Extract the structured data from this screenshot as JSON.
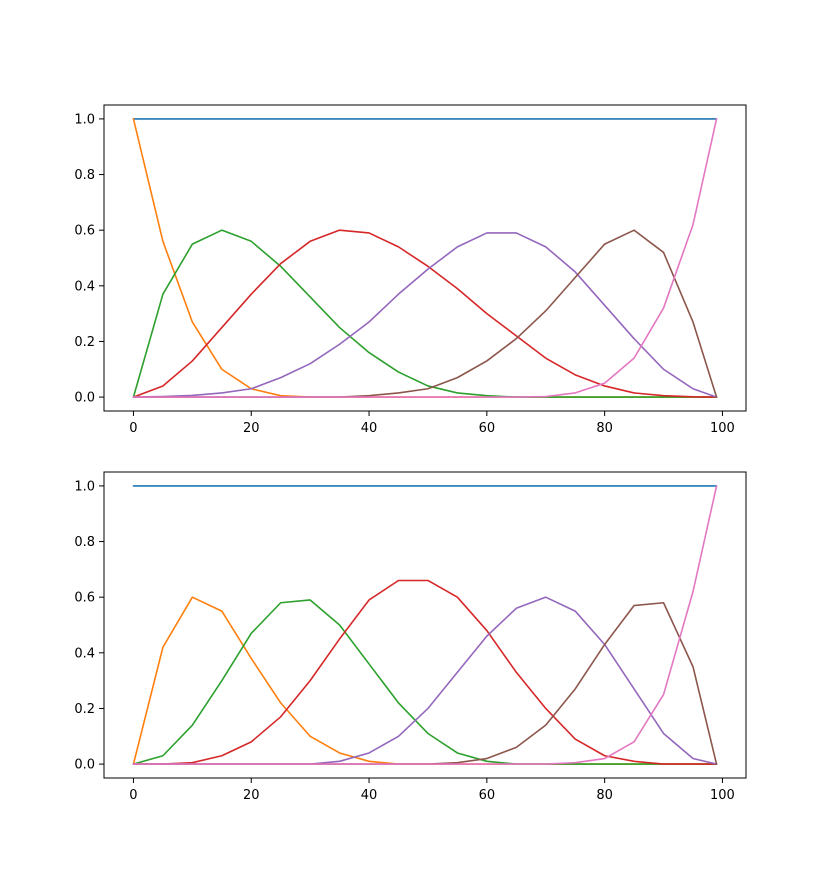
{
  "chart_data": [
    {
      "type": "line",
      "xlim": [
        -5,
        104
      ],
      "ylim": [
        -0.05,
        1.05
      ],
      "x_ticks": [
        0,
        20,
        40,
        60,
        80,
        100
      ],
      "y_ticks": [
        0.0,
        0.2,
        0.4,
        0.6,
        0.8,
        1.0
      ],
      "x_tick_labels": [
        "0",
        "20",
        "40",
        "60",
        "80",
        "100"
      ],
      "y_tick_labels": [
        "0.0",
        "0.2",
        "0.4",
        "0.6",
        "0.8",
        "1.0"
      ],
      "x": [
        0,
        5,
        10,
        15,
        20,
        25,
        30,
        35,
        40,
        45,
        50,
        55,
        60,
        65,
        70,
        75,
        80,
        85,
        90,
        95,
        99
      ],
      "series": [
        {
          "color": "#1f77b4",
          "values": [
            1.0,
            1.0,
            1.0,
            1.0,
            1.0,
            1.0,
            1.0,
            1.0,
            1.0,
            1.0,
            1.0,
            1.0,
            1.0,
            1.0,
            1.0,
            1.0,
            1.0,
            1.0,
            1.0,
            1.0,
            1.0
          ]
        },
        {
          "color": "#ff7f0e",
          "values": [
            1.0,
            0.56,
            0.27,
            0.1,
            0.03,
            0.005,
            0.0,
            0.0,
            0.0,
            0.0,
            0.0,
            0.0,
            0.0,
            0.0,
            0.0,
            0.0,
            0.0,
            0.0,
            0.0,
            0.0,
            0.0
          ]
        },
        {
          "color": "#2ca02c",
          "values": [
            0.0,
            0.37,
            0.55,
            0.6,
            0.56,
            0.47,
            0.36,
            0.25,
            0.16,
            0.09,
            0.04,
            0.015,
            0.005,
            0.0,
            0.0,
            0.0,
            0.0,
            0.0,
            0.0,
            0.0,
            0.0
          ]
        },
        {
          "color": "#d62728",
          "values": [
            0.0,
            0.04,
            0.13,
            0.25,
            0.37,
            0.48,
            0.56,
            0.6,
            0.59,
            0.54,
            0.47,
            0.39,
            0.3,
            0.22,
            0.14,
            0.08,
            0.04,
            0.015,
            0.005,
            0.001,
            0.0
          ]
        },
        {
          "color": "#9467bd",
          "values": [
            0.0,
            0.002,
            0.006,
            0.015,
            0.03,
            0.07,
            0.12,
            0.19,
            0.27,
            0.37,
            0.46,
            0.54,
            0.59,
            0.59,
            0.54,
            0.45,
            0.33,
            0.21,
            0.1,
            0.03,
            0.0
          ]
        },
        {
          "color": "#8c564b",
          "values": [
            0.0,
            0.0,
            0.0,
            0.0,
            0.0,
            0.0,
            0.0,
            0.0,
            0.005,
            0.015,
            0.03,
            0.07,
            0.13,
            0.21,
            0.31,
            0.43,
            0.55,
            0.6,
            0.52,
            0.27,
            0.0
          ]
        },
        {
          "color": "#e377c2",
          "values": [
            0.0,
            0.0,
            0.0,
            0.0,
            0.0,
            0.0,
            0.0,
            0.0,
            0.0,
            0.0,
            0.0,
            0.0,
            0.0,
            0.0,
            0.002,
            0.015,
            0.05,
            0.14,
            0.32,
            0.62,
            1.0
          ]
        }
      ]
    },
    {
      "type": "line",
      "xlim": [
        -5,
        104
      ],
      "ylim": [
        -0.05,
        1.05
      ],
      "x_ticks": [
        0,
        20,
        40,
        60,
        80,
        100
      ],
      "y_ticks": [
        0.0,
        0.2,
        0.4,
        0.6,
        0.8,
        1.0
      ],
      "x_tick_labels": [
        "0",
        "20",
        "40",
        "60",
        "80",
        "100"
      ],
      "y_tick_labels": [
        "0.0",
        "0.2",
        "0.4",
        "0.6",
        "0.8",
        "1.0"
      ],
      "x": [
        0,
        5,
        10,
        15,
        20,
        25,
        30,
        35,
        40,
        45,
        50,
        55,
        60,
        65,
        70,
        75,
        80,
        85,
        90,
        95,
        99
      ],
      "series": [
        {
          "color": "#1f77b4",
          "values": [
            1.0,
            1.0,
            1.0,
            1.0,
            1.0,
            1.0,
            1.0,
            1.0,
            1.0,
            1.0,
            1.0,
            1.0,
            1.0,
            1.0,
            1.0,
            1.0,
            1.0,
            1.0,
            1.0,
            1.0,
            1.0
          ]
        },
        {
          "color": "#ff7f0e",
          "values": [
            0.0,
            0.42,
            0.6,
            0.55,
            0.38,
            0.22,
            0.1,
            0.04,
            0.01,
            0.0,
            0.0,
            0.0,
            0.0,
            0.0,
            0.0,
            0.0,
            0.0,
            0.0,
            0.0,
            0.0,
            0.0
          ]
        },
        {
          "color": "#2ca02c",
          "values": [
            0.0,
            0.03,
            0.14,
            0.3,
            0.47,
            0.58,
            0.59,
            0.5,
            0.36,
            0.22,
            0.11,
            0.04,
            0.01,
            0.0,
            0.0,
            0.0,
            0.0,
            0.0,
            0.0,
            0.0,
            0.0
          ]
        },
        {
          "color": "#d62728",
          "values": [
            0.0,
            0.0,
            0.005,
            0.03,
            0.08,
            0.17,
            0.3,
            0.45,
            0.59,
            0.66,
            0.66,
            0.6,
            0.48,
            0.33,
            0.2,
            0.09,
            0.03,
            0.01,
            0.0,
            0.0,
            0.0
          ]
        },
        {
          "color": "#9467bd",
          "values": [
            0.0,
            0.0,
            0.0,
            0.0,
            0.0,
            0.0,
            0.0,
            0.01,
            0.04,
            0.1,
            0.2,
            0.33,
            0.46,
            0.56,
            0.6,
            0.55,
            0.43,
            0.27,
            0.11,
            0.02,
            0.0
          ]
        },
        {
          "color": "#8c564b",
          "values": [
            0.0,
            0.0,
            0.0,
            0.0,
            0.0,
            0.0,
            0.0,
            0.0,
            0.0,
            0.0,
            0.0,
            0.005,
            0.02,
            0.06,
            0.14,
            0.27,
            0.43,
            0.57,
            0.58,
            0.35,
            0.0
          ]
        },
        {
          "color": "#e377c2",
          "values": [
            0.0,
            0.0,
            0.0,
            0.0,
            0.0,
            0.0,
            0.0,
            0.0,
            0.0,
            0.0,
            0.0,
            0.0,
            0.0,
            0.0,
            0.0,
            0.005,
            0.02,
            0.08,
            0.25,
            0.62,
            1.0
          ]
        }
      ]
    }
  ]
}
